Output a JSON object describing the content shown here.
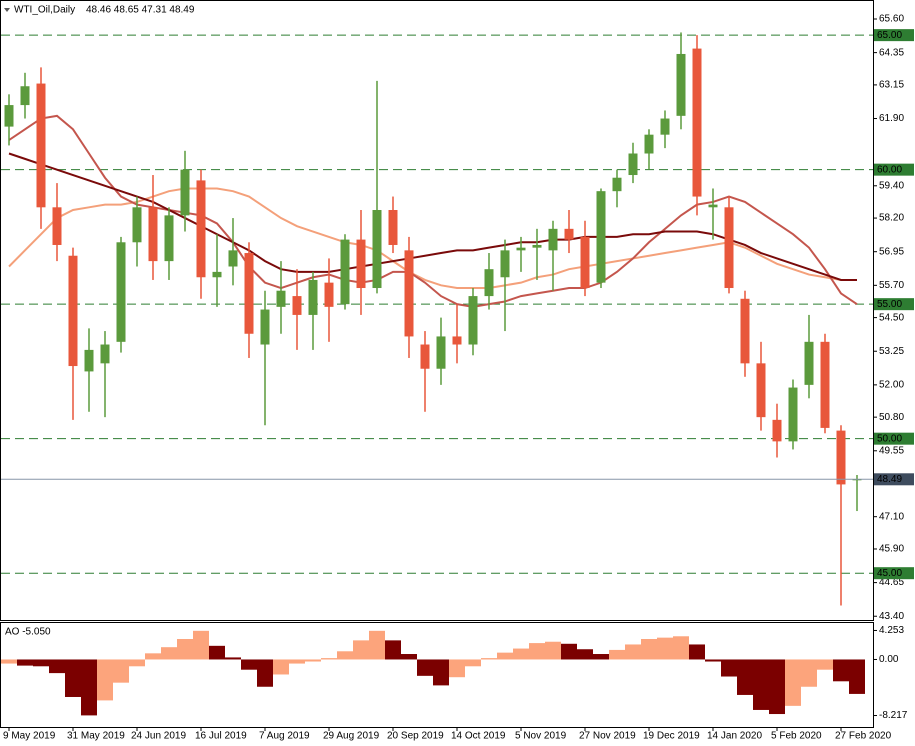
{
  "chart_data": {
    "type": "candlestick",
    "symbol": "WTI_Oil,Daily",
    "ohlc_label": "48.46 48.65 47.31 48.49",
    "categories": [
      "9 May 2019",
      null,
      null,
      null,
      "31 May 2019",
      null,
      null,
      null,
      "24 Jun 2019",
      null,
      null,
      null,
      "16 Jul 2019",
      null,
      null,
      null,
      "7 Aug 2019",
      null,
      null,
      null,
      "29 Aug 2019",
      null,
      null,
      null,
      "20 Sep 2019",
      null,
      null,
      null,
      "14 Oct 2019",
      null,
      null,
      null,
      "5 Nov 2019",
      null,
      null,
      null,
      "27 Nov 2019",
      null,
      null,
      null,
      "19 Dec 2019",
      null,
      null,
      null,
      "14 Jan 2020",
      null,
      null,
      null,
      "5 Feb 2020",
      null,
      null,
      null,
      "27 Feb 2020",
      null
    ],
    "open": [
      61.6,
      62.4,
      63.2,
      58.6,
      56.8,
      52.5,
      52.8,
      53.6,
      57.3,
      58.6,
      56.6,
      58.3,
      59.6,
      56.0,
      56.4,
      56.9,
      53.5,
      54.9,
      55.3,
      54.6,
      55.8,
      55.0,
      57.4,
      55.6,
      58.5,
      57.0,
      53.5,
      52.6,
      53.8,
      53.5,
      55.3,
      56.0,
      57.0,
      57.1,
      57.0,
      57.8,
      57.5,
      55.8,
      59.2,
      59.8,
      60.6,
      61.3,
      62.0,
      64.5,
      58.6,
      58.6,
      55.2,
      52.8,
      50.7,
      49.9,
      52.0,
      53.6,
      50.3,
      48.46
    ],
    "high": [
      62.8,
      63.6,
      63.8,
      59.5,
      57.1,
      54.1,
      54.0,
      57.5,
      59.0,
      59.8,
      58.6,
      60.7,
      60.0,
      57.6,
      58.2,
      57.3,
      55.5,
      56.6,
      56.3,
      56.2,
      56.7,
      57.6,
      58.5,
      63.3,
      59.0,
      57.5,
      54.0,
      54.5,
      55.0,
      55.6,
      56.9,
      57.4,
      57.5,
      57.8,
      58.1,
      58.5,
      58.1,
      59.3,
      60.0,
      61.0,
      61.5,
      62.2,
      65.1,
      65.0,
      59.3,
      59.0,
      55.5,
      53.6,
      51.3,
      52.2,
      54.6,
      53.9,
      50.5,
      48.65
    ],
    "low": [
      60.9,
      61.9,
      57.8,
      56.6,
      50.7,
      51.0,
      50.8,
      53.2,
      56.4,
      55.9,
      55.9,
      57.7,
      55.2,
      54.9,
      55.7,
      53.0,
      50.5,
      53.9,
      53.3,
      53.3,
      53.6,
      54.8,
      54.6,
      55.4,
      56.9,
      53.0,
      51.0,
      52.0,
      52.8,
      53.1,
      54.8,
      54.0,
      56.2,
      55.9,
      55.5,
      56.9,
      55.3,
      55.6,
      58.6,
      59.5,
      60.0,
      60.8,
      61.5,
      58.3,
      57.4,
      55.4,
      52.3,
      50.3,
      49.3,
      49.6,
      51.5,
      50.2,
      43.8,
      47.31
    ],
    "close": [
      62.4,
      63.1,
      58.6,
      57.2,
      52.7,
      53.3,
      53.5,
      57.3,
      58.6,
      56.6,
      58.3,
      60.0,
      56.0,
      56.2,
      57.0,
      53.9,
      54.8,
      55.5,
      54.6,
      55.9,
      54.9,
      57.4,
      55.6,
      58.5,
      57.2,
      53.8,
      52.6,
      53.8,
      53.5,
      55.3,
      56.3,
      57.0,
      57.1,
      57.2,
      57.8,
      57.4,
      55.6,
      59.2,
      59.7,
      60.6,
      61.3,
      61.9,
      64.3,
      59.0,
      58.7,
      55.6,
      52.8,
      50.8,
      49.9,
      51.9,
      53.6,
      50.4,
      48.3,
      48.49
    ],
    "up_color": "#5b9a3c",
    "down_color": "#e8573b",
    "lines": [
      {
        "color": "#f4a07a",
        "values": [
          56.4,
          57.0,
          57.6,
          58.2,
          58.5,
          58.6,
          58.7,
          58.7,
          58.8,
          59.0,
          59.2,
          59.3,
          59.3,
          59.3,
          59.2,
          59.0,
          58.6,
          58.2,
          57.9,
          57.7,
          57.5,
          57.3,
          57.2,
          57.0,
          56.6,
          56.2,
          55.9,
          55.7,
          55.6,
          55.6,
          55.6,
          55.7,
          55.8,
          56.0,
          56.1,
          56.3,
          56.4,
          56.5,
          56.6,
          56.7,
          56.8,
          56.9,
          57.0,
          57.1,
          57.2,
          57.3,
          57.1,
          56.8,
          56.5,
          56.3,
          56.1,
          56.0,
          55.9,
          55.9
        ]
      },
      {
        "color": "#c4564d",
        "values": [
          61.1,
          61.5,
          61.9,
          62.0,
          61.5,
          60.6,
          59.7,
          59.0,
          58.7,
          58.6,
          58.5,
          58.4,
          58.3,
          58.0,
          57.3,
          56.4,
          55.8,
          55.6,
          55.8,
          56.0,
          56.1,
          55.9,
          55.8,
          55.9,
          56.2,
          56.2,
          55.8,
          55.3,
          55.0,
          54.9,
          55.0,
          55.1,
          55.3,
          55.4,
          55.5,
          55.6,
          55.6,
          55.8,
          56.2,
          56.7,
          57.3,
          57.8,
          58.3,
          58.7,
          58.8,
          59.0,
          58.8,
          58.4,
          58.0,
          57.6,
          57.1,
          56.3,
          55.4,
          55.0
        ]
      },
      {
        "color": "#7a0a0a",
        "values": [
          60.6,
          60.4,
          60.2,
          60.0,
          59.8,
          59.6,
          59.4,
          59.2,
          59.0,
          58.8,
          58.5,
          58.2,
          57.9,
          57.6,
          57.3,
          57.0,
          56.6,
          56.3,
          56.2,
          56.2,
          56.2,
          56.3,
          56.4,
          56.5,
          56.6,
          56.7,
          56.8,
          56.9,
          57.0,
          57.0,
          57.1,
          57.2,
          57.3,
          57.3,
          57.4,
          57.4,
          57.5,
          57.5,
          57.5,
          57.6,
          57.6,
          57.7,
          57.7,
          57.7,
          57.6,
          57.4,
          57.2,
          56.9,
          56.7,
          56.5,
          56.3,
          56.1,
          55.9,
          55.9
        ]
      }
    ],
    "levels": [
      {
        "value": 65,
        "label": "65.00"
      },
      {
        "value": 60,
        "label": "60.00"
      },
      {
        "value": 55,
        "label": "55.00"
      },
      {
        "value": 50,
        "label": "50.00"
      },
      {
        "value": 45,
        "label": "45.00"
      }
    ],
    "level_color": "#2e7d32",
    "ylim": [
      43.26,
      66.12
    ],
    "yticks": [
      {
        "value": 65.6,
        "label": "65.60"
      },
      64.35,
      63.15,
      {
        "value": 61.9,
        "label": "61.90"
      },
      {
        "value": 59.4,
        "label": "59.40"
      },
      {
        "value": 58.2,
        "label": "58.20"
      },
      56.95,
      {
        "value": 55.7,
        "label": "55.70"
      },
      {
        "value": 54.5,
        "label": "54.50"
      },
      53.25,
      {
        "value": 52,
        "label": "52.00"
      },
      {
        "value": 50.8,
        "label": "50.80"
      },
      49.55,
      {
        "value": 47.1,
        "label": "47.10"
      },
      {
        "value": 45.9,
        "label": "45.90"
      },
      44.65,
      {
        "value": 43.4,
        "label": "43.40"
      }
    ],
    "indicator": {
      "label": "AO -5.050",
      "values": [
        -0.6,
        -0.9,
        -1.0,
        -2.0,
        -5.5,
        -8.2,
        -6.0,
        -3.4,
        -1.0,
        0.9,
        1.8,
        3.0,
        4.2,
        2.0,
        0.3,
        -1.5,
        -4.0,
        -2.2,
        -0.6,
        -0.3,
        0.2,
        1.2,
        2.8,
        4.2,
        2.8,
        0.8,
        -2.4,
        -3.8,
        -2.6,
        -1.0,
        0.2,
        1.0,
        1.6,
        2.4,
        2.6,
        2.3,
        1.5,
        0.8,
        1.4,
        2.2,
        3.0,
        3.2,
        3.4,
        2.2,
        -0.3,
        -2.5,
        -5.2,
        -7.4,
        -8.0,
        -6.8,
        -4.0,
        -1.5,
        -3.2,
        -5.05
      ],
      "up_color": "#fca47c",
      "down_color": "#7b0000",
      "ylim": [
        -9.9,
        5.2
      ],
      "yticks": [
        4.253,
        {
          "value": 0,
          "label": "0.00"
        },
        -8.217
      ]
    }
  }
}
